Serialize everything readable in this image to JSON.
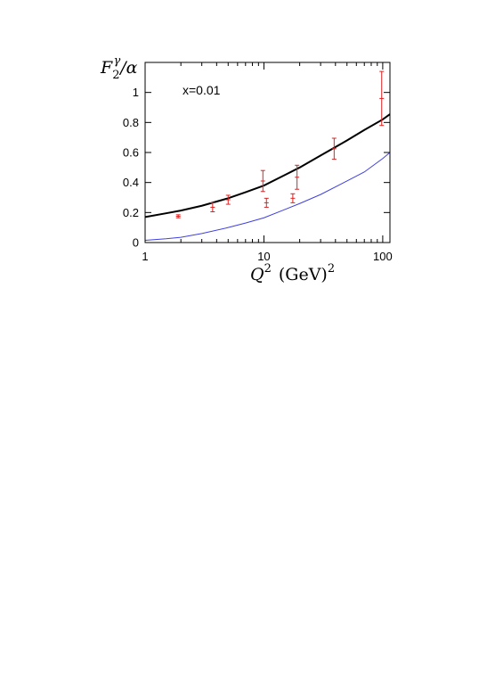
{
  "chart_data": {
    "type": "line",
    "annotation": "x=0.01",
    "xscale": "log",
    "xlim": [
      1,
      115
    ],
    "ylim": [
      0,
      1.2
    ],
    "xticks": [
      {
        "value": 1,
        "label": "1"
      },
      {
        "value": 10,
        "label": "10"
      },
      {
        "value": 100,
        "label": "100"
      }
    ],
    "yticks": [
      {
        "value": 0,
        "label": "0"
      },
      {
        "value": 0.2,
        "label": "0.2"
      },
      {
        "value": 0.4,
        "label": "0.4"
      },
      {
        "value": 0.6,
        "label": "0.6"
      },
      {
        "value": 0.8,
        "label": "0.8"
      },
      {
        "value": 1,
        "label": "1"
      }
    ],
    "ylabel": {
      "base": "F",
      "sub": "2",
      "sup": "γ",
      "rest": "/α"
    },
    "xlabel": {
      "base": "Q",
      "sup": "2",
      "unit": "(GeV)",
      "unit_sup": "2"
    },
    "series": [
      {
        "style": "curve",
        "color": "#000000",
        "x": [
          1,
          1.5,
          2,
          3,
          5,
          7,
          10,
          15,
          20,
          30,
          50,
          70,
          100,
          115
        ],
        "y": [
          0.17,
          0.195,
          0.213,
          0.245,
          0.295,
          0.335,
          0.38,
          0.45,
          0.5,
          0.58,
          0.68,
          0.75,
          0.82,
          0.855
        ]
      },
      {
        "style": "curve",
        "color": "#4040e0",
        "x": [
          1,
          1.5,
          2,
          3,
          5,
          7,
          10,
          15,
          20,
          30,
          50,
          70,
          100,
          115
        ],
        "y": [
          0.015,
          0.025,
          0.035,
          0.06,
          0.1,
          0.13,
          0.165,
          0.22,
          0.26,
          0.32,
          0.41,
          0.47,
          0.56,
          0.6
        ]
      },
      {
        "style": "points",
        "color": "#dd2222",
        "x": [
          1.9,
          3.7,
          5.0,
          9.8,
          10.5,
          17.5,
          19.0,
          39.0,
          98.0
        ],
        "y": [
          0.175,
          0.235,
          0.285,
          0.41,
          0.265,
          0.295,
          0.435,
          0.625,
          0.96
        ],
        "err": [
          0.01,
          0.03,
          0.03,
          0.07,
          0.03,
          0.03,
          0.08,
          0.07,
          0.18
        ]
      }
    ]
  }
}
